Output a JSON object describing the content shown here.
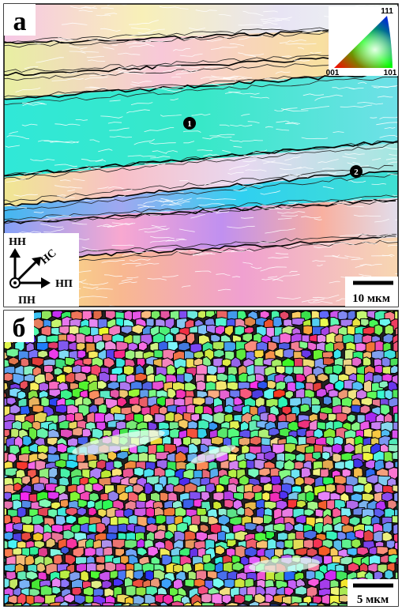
{
  "panels": [
    {
      "label": "а",
      "triangle": {
        "top": "111",
        "left": "001",
        "right": "101"
      },
      "markers": [
        "1",
        "2"
      ],
      "axes": {
        "nn": "НН",
        "ns": "НС",
        "np": "НП",
        "pn": "ПН"
      },
      "scale_bar": "10 мкм"
    },
    {
      "label": "б",
      "scale_bar": "5 мкм"
    }
  ]
}
